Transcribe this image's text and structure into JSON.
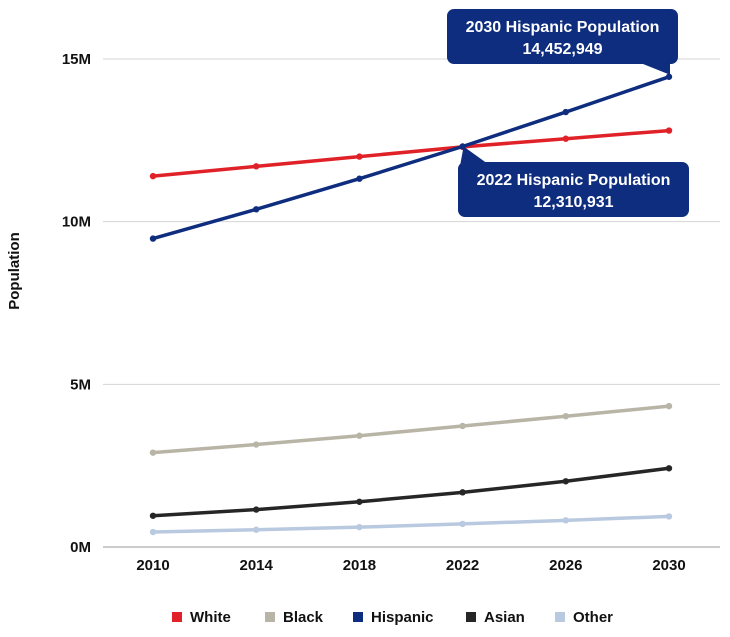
{
  "chart_data": {
    "type": "line",
    "ylabel": "Population",
    "xlabel": "",
    "categories": [
      "2010",
      "2014",
      "2018",
      "2022",
      "2026",
      "2030"
    ],
    "ylim": [
      0,
      15000000
    ],
    "yticks": [
      {
        "value": 0,
        "label": "0M"
      },
      {
        "value": 5000000,
        "label": "5M"
      },
      {
        "value": 10000000,
        "label": "10M"
      },
      {
        "value": 15000000,
        "label": "15M"
      }
    ],
    "series": [
      {
        "name": "White",
        "color": "#e02228",
        "values": [
          11400000,
          11700000,
          12000000,
          12300000,
          12550000,
          12800000
        ]
      },
      {
        "name": "Black",
        "color": "#b8b5a6",
        "values": [
          2900000,
          3150000,
          3420000,
          3720000,
          4020000,
          4330000
        ]
      },
      {
        "name": "Hispanic",
        "color": "#0f2d7f",
        "values": [
          9480000,
          10380000,
          11320000,
          12310931,
          13370000,
          14452949
        ]
      },
      {
        "name": "Asian",
        "color": "#262626",
        "values": [
          960000,
          1150000,
          1390000,
          1680000,
          2020000,
          2420000
        ]
      },
      {
        "name": "Other",
        "color": "#b9c9df",
        "values": [
          460000,
          530000,
          610000,
          710000,
          820000,
          940000
        ]
      }
    ],
    "annotations": [
      {
        "title": "2030 Hispanic Population",
        "value": "14,452,949",
        "x": "2030",
        "y": 14452949
      },
      {
        "title": "2022 Hispanic Population",
        "value": "12,310,931",
        "x": "2022",
        "y": 12310931
      }
    ],
    "legend_position": "bottom",
    "grid": true,
    "callout_color": "#0f2d7f"
  }
}
